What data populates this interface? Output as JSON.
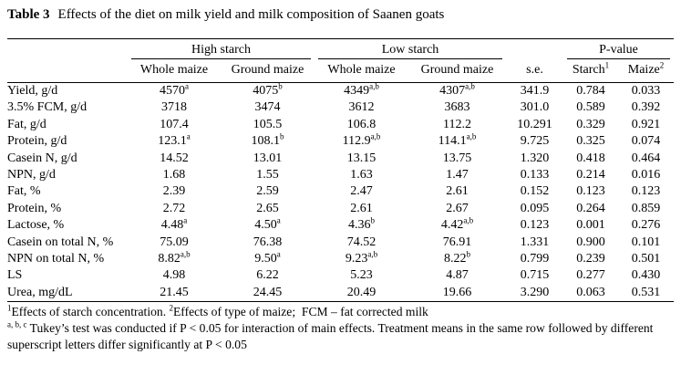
{
  "caption": {
    "label": "Table 3",
    "text": "Effects of the diet on milk yield and milk composition of Saanen goats"
  },
  "table": {
    "group_headers": {
      "high_starch": "High starch",
      "low_starch": "Low starch",
      "p_value": "P-value"
    },
    "col_headers": {
      "row_label": "",
      "hs_whole": "Whole maize",
      "hs_ground": "Ground maize",
      "ls_whole": "Whole maize",
      "ls_ground": "Ground maize",
      "se": "s.e.",
      "p_starch": "Starch^{1}",
      "p_maize": "Maize^{2}"
    },
    "rows": [
      {
        "label": "Yield, g/d",
        "values": [
          "4570^{a}",
          "4075^{b}",
          "4349^{a,b}",
          "4307^{a,b}",
          "341.9",
          "0.784",
          "0.033"
        ]
      },
      {
        "label": "3.5% FCM, g/d",
        "values": [
          "3718",
          "3474",
          "3612",
          "3683",
          "301.0",
          "0.589",
          "0.392"
        ]
      },
      {
        "label": "Fat, g/d",
        "values": [
          "107.4",
          "105.5",
          "106.8",
          "112.2",
          "10.291",
          "0.329",
          "0.921"
        ]
      },
      {
        "label": "Protein, g/d",
        "values": [
          "123.1^{a}",
          "108.1^{b}",
          "112.9^{a,b}",
          "114.1^{a,b}",
          "9.725",
          "0.325",
          "0.074"
        ]
      },
      {
        "label": "Casein N, g/d",
        "values": [
          "14.52",
          "13.01",
          "13.15",
          "13.75",
          "1.320",
          "0.418",
          "0.464"
        ]
      },
      {
        "label": "NPN, g/d",
        "values": [
          "1.68",
          "1.55",
          "1.63",
          "1.47",
          "0.133",
          "0.214",
          "0.016"
        ]
      },
      {
        "label": "Fat, %",
        "values": [
          "2.39",
          "2.59",
          "2.47",
          "2.61",
          "0.152",
          "0.123",
          "0.123"
        ]
      },
      {
        "label": "Protein, %",
        "values": [
          "2.72",
          "2.65",
          "2.61",
          "2.67",
          "0.095",
          "0.264",
          "0.859"
        ]
      },
      {
        "label": "Lactose, %",
        "values": [
          "4.48^{a}",
          "4.50^{a}",
          "4.36^{b}",
          "4.42^{a,b}",
          "0.123",
          "0.001",
          "0.276"
        ]
      },
      {
        "label": "Casein on total N, %",
        "values": [
          "75.09",
          "76.38",
          "74.52",
          "76.91",
          "1.331",
          "0.900",
          "0.101"
        ]
      },
      {
        "label": "NPN on total N, %",
        "values": [
          "8.82^{a,b}",
          "9.50^{a}",
          "9.23^{a,b}",
          "8.22^{b}",
          "0.799",
          "0.239",
          "0.501"
        ]
      },
      {
        "label": "LS",
        "values": [
          "4.98",
          "6.22",
          "5.23",
          "4.87",
          "0.715",
          "0.277",
          "0.430"
        ]
      },
      {
        "label": "Urea, mg/dL",
        "values": [
          "21.45",
          "24.45",
          "20.49",
          "19.66",
          "3.290",
          "0.063",
          "0.531"
        ]
      }
    ]
  },
  "footnotes": [
    "^{1}Effects of starch concentration. ^{2}Effects of type of maize;  FCM – fat corrected milk",
    "^{a, b, c} Tukey’s test was conducted if P < 0.05 for interaction of main effects. Treatment means in the same row followed by different superscript letters differ significantly at P < 0.05"
  ]
}
